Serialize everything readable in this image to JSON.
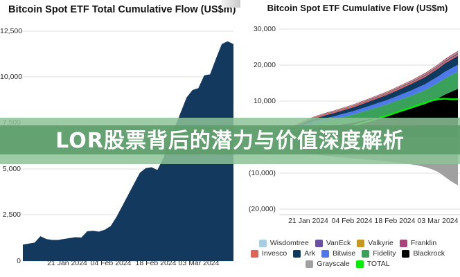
{
  "banner": {
    "title": "LOR股票背后的潜力与价值深度解析"
  },
  "charts": {
    "left": {
      "title": "Bitcoin Spot ETF Total Cumulative Flow (US$m)"
    },
    "right": {
      "title": "Bitcoin Spot ETF Cumulative Flow (US$m)"
    }
  },
  "legend": {
    "rows": [
      [
        {
          "label": "Wisdomtree",
          "color": "#a6cee3"
        },
        {
          "label": "VanEck",
          "color": "#6a4fa3"
        },
        {
          "label": "Valkyrie",
          "color": "#c7961e"
        },
        {
          "label": "Franklin",
          "color": "#a8447c"
        }
      ],
      [
        {
          "label": "Invesco",
          "color": "#e0635a"
        },
        {
          "label": "Ark",
          "color": "#0d3a5e"
        },
        {
          "label": "Bitwise",
          "color": "#4d79ea"
        },
        {
          "label": "Fidelity",
          "color": "#3aa15a"
        },
        {
          "label": "Blackrock",
          "color": "#000000"
        }
      ],
      [
        {
          "label": "Grayscale",
          "color": "#a0a0a0"
        },
        {
          "label": "TOTAL",
          "color": "#00ee00"
        }
      ]
    ]
  },
  "chart_data": [
    {
      "type": "area",
      "title": "Bitcoin Spot ETF Total Cumulative Flow (US$m)",
      "ylabel": "US$m",
      "ylim": [
        0,
        12500
      ],
      "grid": true,
      "y_tick_values": [
        12500,
        10000,
        7500,
        5000,
        2500,
        0
      ],
      "y_tick_labels": [
        "12,500",
        "10,000",
        "7,500",
        "5,000",
        "2,500",
        "0"
      ],
      "x_tick_labels": [
        "21 Jan 2024",
        "04 Feb 2024",
        "18 Feb 2024",
        "03 Mar 2024"
      ],
      "series": [
        {
          "name": "TOTAL",
          "color": "#133a5e",
          "values": [
            900,
            950,
            1000,
            1350,
            1200,
            1150,
            1150,
            1200,
            1250,
            1300,
            1280,
            1620,
            1650,
            1600,
            1700,
            1900,
            2400,
            3000,
            3600,
            4200,
            4800,
            5050,
            5100,
            4950,
            5600,
            6500,
            7300,
            8100,
            8900,
            9300,
            9400,
            10100,
            10150,
            11000,
            11800,
            11950,
            11800
          ]
        }
      ]
    },
    {
      "type": "area",
      "subtype": "stacked",
      "title": "Bitcoin Spot ETF Cumulative Flow (US$m)",
      "ylabel": "US$m",
      "ylim": [
        -22000,
        32000
      ],
      "grid": true,
      "legend_position": "bottom",
      "y_tick_values": [
        30000,
        20000,
        10000,
        -10000,
        -20000
      ],
      "y_tick_labels": [
        "30,000",
        "20,000",
        "10,000",
        "(10,000)",
        "(20,000)"
      ],
      "x_tick_labels": [
        "21 Jan 2024",
        "04 Feb 2024",
        "18 Feb 2024",
        "03 Mar 2024"
      ],
      "series": [
        {
          "name": "Blackrock",
          "color": "#000000",
          "values": [
            300,
            700,
            1100,
            1500,
            1900,
            2300,
            2600,
            2900,
            3100,
            3400,
            3700,
            4000,
            4400,
            4800,
            5200,
            5600,
            6000,
            6500,
            7000,
            7500,
            8000,
            8600,
            9200,
            10000,
            10800,
            11800,
            12600,
            13400
          ]
        },
        {
          "name": "Fidelity",
          "color": "#3aa15a",
          "values": [
            200,
            450,
            700,
            950,
            1150,
            1350,
            1500,
            1650,
            1800,
            1950,
            2100,
            2250,
            2400,
            2550,
            2700,
            2850,
            3000,
            3150,
            3300,
            3450,
            3600,
            3750,
            3900,
            4100,
            4300,
            4500,
            4650,
            4800
          ]
        },
        {
          "name": "Bitwise",
          "color": "#4d79ea",
          "values": [
            250,
            400,
            500,
            560,
            620,
            680,
            720,
            760,
            800,
            840,
            880,
            920,
            960,
            1000,
            1050,
            1100,
            1150,
            1200,
            1280,
            1360,
            1440,
            1520,
            1600,
            1680,
            1760,
            1820,
            1870,
            1900
          ]
        },
        {
          "name": "Ark",
          "color": "#0d3a5e",
          "values": [
            200,
            350,
            480,
            580,
            660,
            720,
            780,
            840,
            900,
            960,
            1020,
            1080,
            1150,
            1220,
            1300,
            1380,
            1460,
            1540,
            1620,
            1700,
            1800,
            1900,
            2000,
            2100,
            2200,
            2300,
            2400,
            2500
          ]
        },
        {
          "name": "Invesco",
          "color": "#e0635a",
          "values": [
            120,
            180,
            220,
            250,
            270,
            285,
            295,
            300,
            305,
            310,
            315,
            320,
            325,
            330,
            335,
            340,
            345,
            350,
            355,
            360,
            365,
            370,
            375,
            380,
            385,
            390,
            395,
            400
          ]
        },
        {
          "name": "VanEck",
          "color": "#6a4fa3",
          "values": [
            30,
            50,
            70,
            85,
            95,
            105,
            115,
            125,
            135,
            145,
            155,
            165,
            175,
            185,
            195,
            205,
            215,
            225,
            235,
            245,
            255,
            265,
            280,
            300,
            320,
            350,
            380,
            400
          ]
        },
        {
          "name": "Valkyrie",
          "color": "#c7961e",
          "values": [
            30,
            45,
            60,
            70,
            80,
            88,
            95,
            100,
            105,
            110,
            115,
            120,
            125,
            130,
            135,
            140,
            145,
            150,
            155,
            160,
            165,
            170,
            175,
            180,
            185,
            190,
            195,
            200
          ]
        },
        {
          "name": "Wisdomtree",
          "color": "#a6cee3",
          "values": [
            10,
            12,
            14,
            16,
            18,
            20,
            22,
            24,
            26,
            28,
            30,
            32,
            34,
            36,
            38,
            40,
            42,
            44,
            46,
            48,
            50,
            52,
            54,
            56,
            58,
            60,
            62,
            64
          ]
        },
        {
          "name": "Franklin",
          "color": "#a8447c",
          "values": [
            40,
            60,
            75,
            90,
            100,
            110,
            118,
            125,
            130,
            135,
            140,
            145,
            150,
            155,
            160,
            165,
            170,
            175,
            180,
            190,
            200,
            210,
            220,
            230,
            240,
            250,
            260,
            270
          ]
        }
      ],
      "negative_series": [
        {
          "name": "Grayscale",
          "color": "#a0a0a0",
          "values": [
            -800,
            -1800,
            -2800,
            -3600,
            -4200,
            -4700,
            -5000,
            -5200,
            -5400,
            -5600,
            -5750,
            -5900,
            -6050,
            -6200,
            -6350,
            -6500,
            -6700,
            -6900,
            -7100,
            -7350,
            -7600,
            -7900,
            -8300,
            -8900,
            -9700,
            -11000,
            -12300,
            -13400
          ]
        }
      ],
      "total_line": {
        "name": "TOTAL",
        "color": "#00ee00"
      }
    }
  ]
}
